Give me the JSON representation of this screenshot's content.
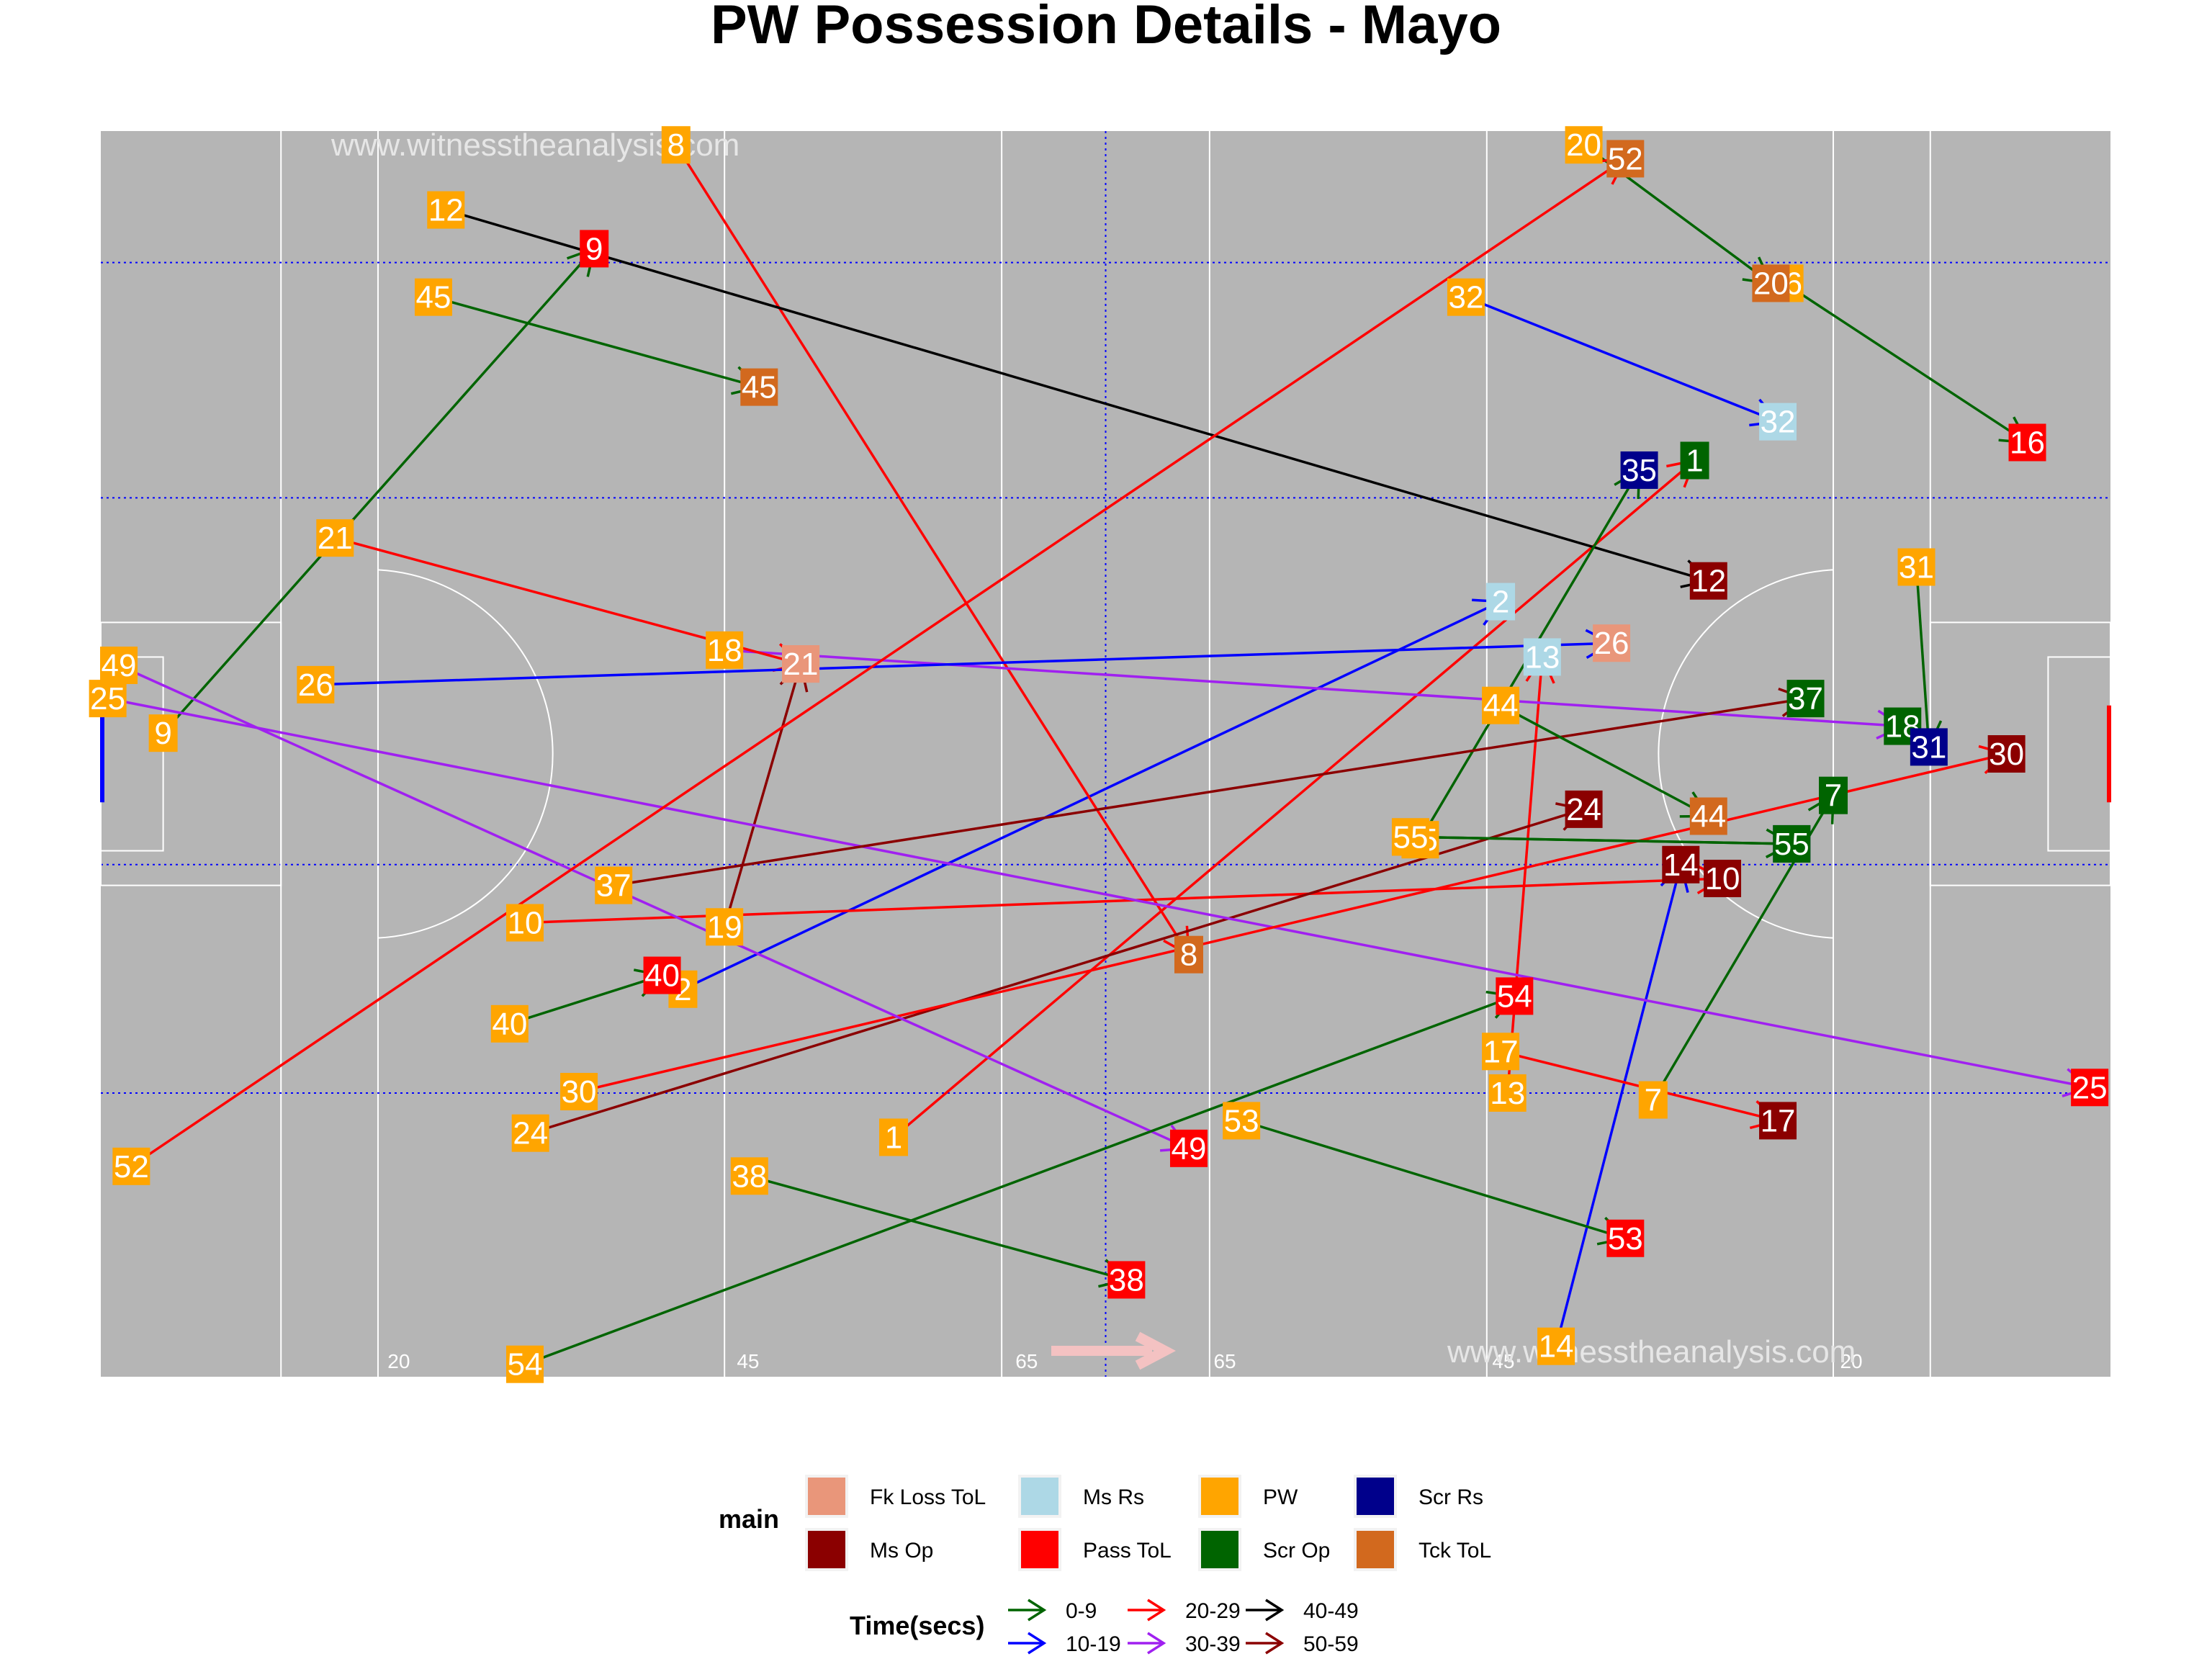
{
  "chart_data": {
    "type": "scatter",
    "title": "PW Possession Details - Mayo",
    "watermark": "www.witnesstheanalysis.com",
    "xlim": [
      0,
      145
    ],
    "ylim": [
      0,
      90
    ],
    "yard_labels": [
      {
        "x": 21.5,
        "text": "20"
      },
      {
        "x": 46.7,
        "text": "45"
      },
      {
        "x": 66.8,
        "text": "65"
      },
      {
        "x": 81.1,
        "text": "65"
      },
      {
        "x": 101.2,
        "text": "45"
      },
      {
        "x": 126.3,
        "text": "20"
      }
    ],
    "colors": {
      "categories": {
        "Fk Loss ToL": "#e9967a",
        "Ms Rs": "#add8e6",
        "PW": "#ffa500",
        "Scr Rs": "#00008b",
        "Ms Op": "#8b0000",
        "Pass ToL": "#ff0000",
        "Scr Op": "#006400",
        "Tck ToL": "#d2691e"
      },
      "time_bins": {
        "0-9": "#006400",
        "10-19": "#0000ff",
        "20-29": "#ff0000",
        "30-39": "#a020f0",
        "40-49": "#000000",
        "50-59": "#8b0000"
      }
    },
    "legend": {
      "main_title": "main",
      "main_items": [
        "Fk Loss ToL",
        "Ms Op",
        "Ms Rs",
        "Pass ToL",
        "PW",
        "Scr Op",
        "Scr Rs",
        "Tck ToL"
      ],
      "time_title": "Time(secs)",
      "time_items": [
        "0-9",
        "10-19",
        "20-29",
        "30-39",
        "40-49",
        "50-59"
      ]
    },
    "possessions": [
      {
        "id": "1",
        "time": "20-29",
        "start": [
          57.2,
          17.3
        ],
        "end": [
          115.0,
          66.2
        ],
        "outcome": "Scr Op"
      },
      {
        "id": "2",
        "time": "10-19",
        "start": [
          42.0,
          28.0
        ],
        "end": [
          101.0,
          56.0
        ],
        "outcome": "Ms Rs"
      },
      {
        "id": "7",
        "time": "0-9",
        "start": [
          112.0,
          20.0
        ],
        "end": [
          125.0,
          42.0
        ],
        "outcome": "Scr Op"
      },
      {
        "id": "8",
        "time": "20-29",
        "start": [
          41.5,
          89.0
        ],
        "end": [
          78.5,
          30.5
        ],
        "outcome": "Tck ToL"
      },
      {
        "id": "9",
        "time": "0-9",
        "start": [
          4.5,
          46.5
        ],
        "end": [
          35.6,
          81.5
        ],
        "outcome": "Pass ToL"
      },
      {
        "id": "10",
        "time": "20-29",
        "start": [
          30.6,
          32.8
        ],
        "end": [
          117.0,
          36.0
        ],
        "outcome": "Ms Op"
      },
      {
        "id": "12",
        "time": "40-49",
        "start": [
          24.9,
          84.3
        ],
        "end": [
          116.0,
          57.5
        ],
        "outcome": "Ms Op"
      },
      {
        "id": "13",
        "time": "20-29",
        "start": [
          101.5,
          20.5
        ],
        "end": [
          104.0,
          52.0
        ],
        "outcome": "Ms Rs"
      },
      {
        "id": "14",
        "time": "10-19",
        "start": [
          105.0,
          2.2
        ],
        "end": [
          114.0,
          37.0
        ],
        "outcome": "Ms Op"
      },
      {
        "id": "16",
        "time": "0-9",
        "start": [
          121.5,
          79.0
        ],
        "end": [
          139.0,
          67.5
        ],
        "outcome": "Pass ToL"
      },
      {
        "id": "17",
        "time": "20-29",
        "start": [
          101.0,
          23.5
        ],
        "end": [
          121.0,
          18.5
        ],
        "outcome": "Ms Op"
      },
      {
        "id": "18",
        "time": "30-39",
        "start": [
          45.0,
          52.5
        ],
        "end": [
          130.0,
          47.0
        ],
        "outcome": "Scr Op"
      },
      {
        "id": "19",
        "time": "50-59",
        "start": [
          45.0,
          32.5
        ],
        "end": [
          50.5,
          51.5
        ],
        "outcome": "Fk Loss ToL"
      },
      {
        "id": "20",
        "time": "0-9",
        "start": [
          107.0,
          89.0
        ],
        "end": [
          120.5,
          79.0
        ],
        "outcome": "Tck ToL"
      },
      {
        "id": "21",
        "time": "20-29",
        "start": [
          16.9,
          60.6
        ],
        "end": [
          50.5,
          51.5
        ],
        "outcome": "Fk Loss ToL"
      },
      {
        "id": "24",
        "time": "50-59",
        "start": [
          31.0,
          17.6
        ],
        "end": [
          107.0,
          41.0
        ],
        "outcome": "Ms Op"
      },
      {
        "id": "25",
        "time": "30-39",
        "start": [
          0.5,
          49.0
        ],
        "end": [
          143.5,
          20.9
        ],
        "outcome": "Pass ToL"
      },
      {
        "id": "26",
        "time": "10-19",
        "start": [
          15.5,
          50.0
        ],
        "end": [
          109.0,
          53.0
        ],
        "outcome": "Fk Loss ToL"
      },
      {
        "id": "30",
        "time": "20-29",
        "start": [
          34.5,
          20.6
        ],
        "end": [
          137.5,
          45.0
        ],
        "outcome": "Ms Op"
      },
      {
        "id": "31",
        "time": "0-9",
        "start": [
          131.0,
          58.5
        ],
        "end": [
          131.9,
          45.5
        ],
        "outcome": "Scr Rs"
      },
      {
        "id": "32",
        "time": "10-19",
        "start": [
          98.5,
          78.0
        ],
        "end": [
          121.0,
          69.0
        ],
        "outcome": "Ms Rs"
      },
      {
        "id": "35",
        "time": "0-9",
        "start": [
          95.2,
          38.8
        ],
        "end": [
          111.0,
          65.5
        ],
        "outcome": "Scr Rs"
      },
      {
        "id": "37",
        "time": "50-59",
        "start": [
          37.0,
          35.5
        ],
        "end": [
          123.0,
          49.0
        ],
        "outcome": "Scr Op"
      },
      {
        "id": "38",
        "time": "0-9",
        "start": [
          46.8,
          14.5
        ],
        "end": [
          74.0,
          7.0
        ],
        "outcome": "Pass ToL"
      },
      {
        "id": "40",
        "time": "0-9",
        "start": [
          29.5,
          25.5
        ],
        "end": [
          40.5,
          29.0
        ],
        "outcome": "Pass ToL"
      },
      {
        "id": "44",
        "time": "0-9",
        "start": [
          101.0,
          48.5
        ],
        "end": [
          116.0,
          40.5
        ],
        "outcome": "Tck ToL"
      },
      {
        "id": "45",
        "time": "0-9",
        "start": [
          24.0,
          78.0
        ],
        "end": [
          47.5,
          71.5
        ],
        "outcome": "Tck ToL"
      },
      {
        "id": "49",
        "time": "30-39",
        "start": [
          1.3,
          51.4
        ],
        "end": [
          78.5,
          16.5
        ],
        "outcome": "Pass ToL"
      },
      {
        "id": "51",
        "time": "0-9",
        "start": [
          94.5,
          39.0
        ],
        "end": [
          122.0,
          38.5
        ],
        "outcome": "Scr Rs"
      },
      {
        "id": "52",
        "time": "20-29",
        "start": [
          2.2,
          15.2
        ],
        "end": [
          110.0,
          88.0
        ],
        "outcome": "Tck ToL"
      },
      {
        "id": "53",
        "time": "0-9",
        "start": [
          82.3,
          18.5
        ],
        "end": [
          110.0,
          10.0
        ],
        "outcome": "Pass ToL"
      },
      {
        "id": "54",
        "time": "0-9",
        "start": [
          30.6,
          0.9
        ],
        "end": [
          102.0,
          27.5
        ],
        "outcome": "Pass ToL"
      },
      {
        "id": "55",
        "time": "0-9",
        "start": [
          94.5,
          39.0
        ],
        "end": [
          122.0,
          38.5
        ],
        "outcome": "Scr Op"
      }
    ]
  }
}
